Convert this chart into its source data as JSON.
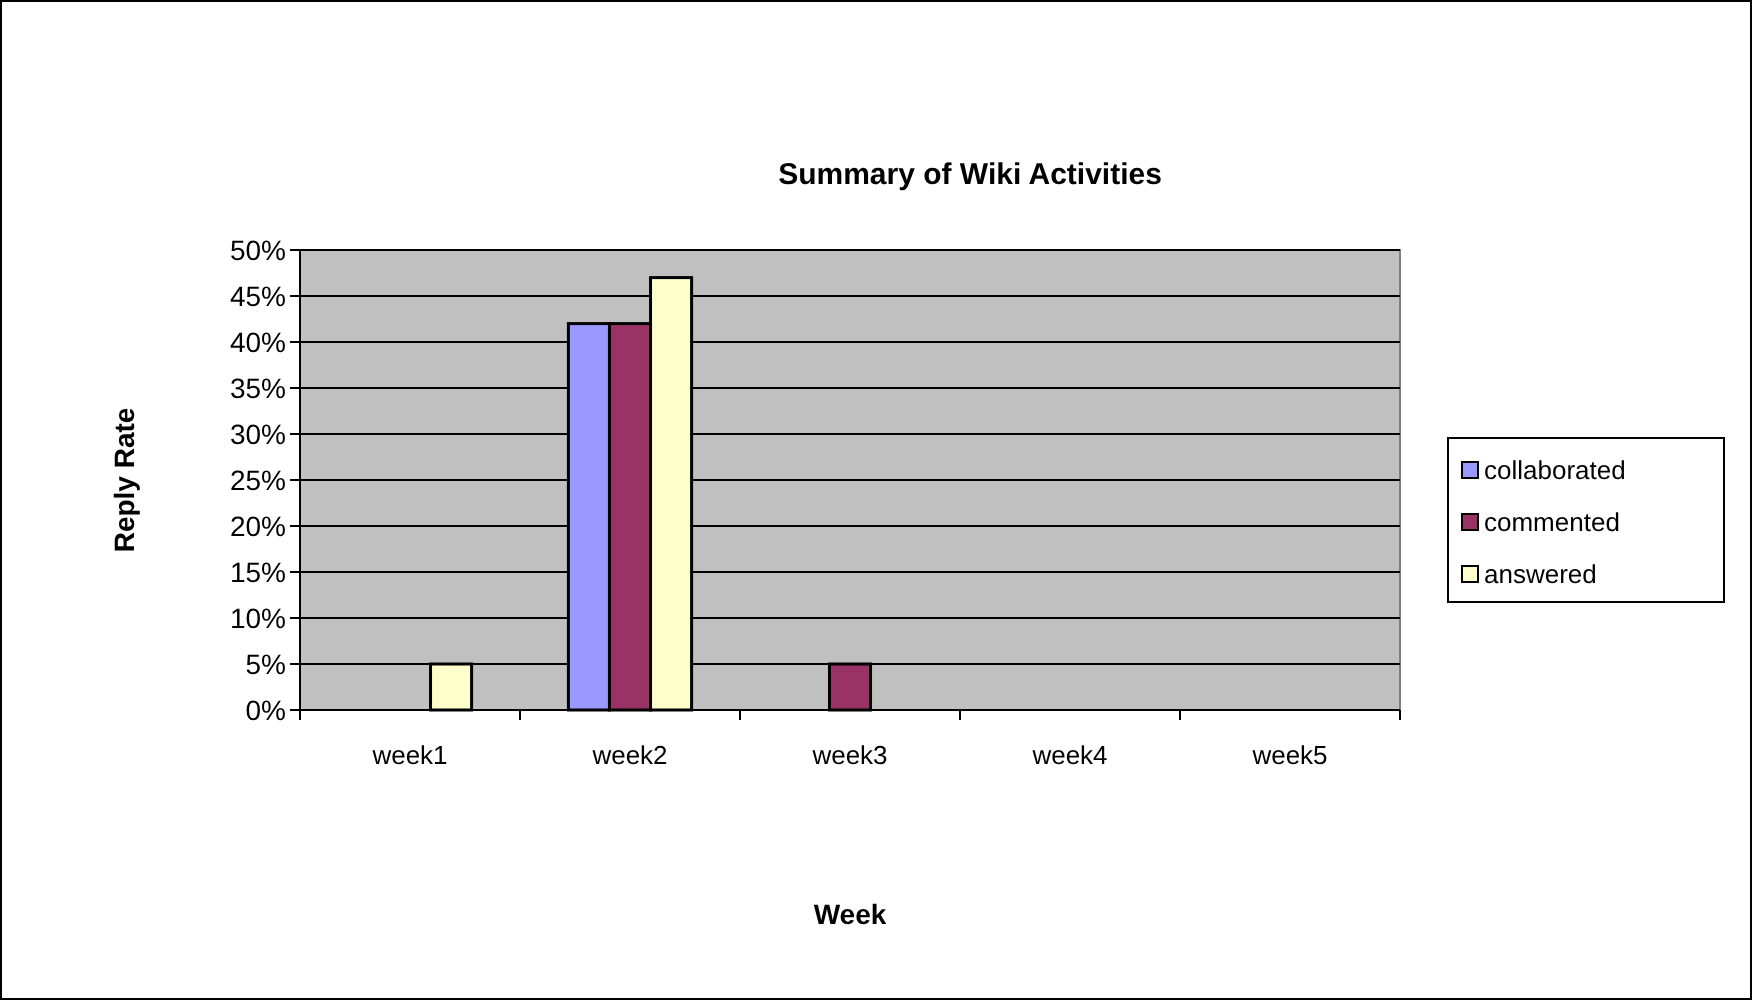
{
  "chart_data": {
    "type": "bar",
    "title": "Summary of Wiki Activities",
    "xlabel": "Week",
    "ylabel": "Reply Rate",
    "categories": [
      "week1",
      "week2",
      "week3",
      "week4",
      "week5"
    ],
    "series": [
      {
        "name": "collaborated",
        "color": "#9999ff",
        "values": [
          0,
          42,
          0,
          0,
          0
        ]
      },
      {
        "name": "commented",
        "color": "#993366",
        "values": [
          0,
          42,
          5,
          0,
          0
        ]
      },
      {
        "name": "answered",
        "color": "#ffffcc",
        "values": [
          5,
          47,
          0,
          0,
          0
        ]
      }
    ],
    "ylim": [
      0,
      50
    ],
    "yticks": [
      {
        "value": 0,
        "label": "0%"
      },
      {
        "value": 5,
        "label": "5%"
      },
      {
        "value": 10,
        "label": "10%"
      },
      {
        "value": 15,
        "label": "15%"
      },
      {
        "value": 20,
        "label": "20%"
      },
      {
        "value": 25,
        "label": "25%"
      },
      {
        "value": 30,
        "label": "30%"
      },
      {
        "value": 35,
        "label": "35%"
      },
      {
        "value": 40,
        "label": "40%"
      },
      {
        "value": 45,
        "label": "45%"
      },
      {
        "value": 50,
        "label": "50%"
      }
    ],
    "grid": "y",
    "legend": "right"
  }
}
